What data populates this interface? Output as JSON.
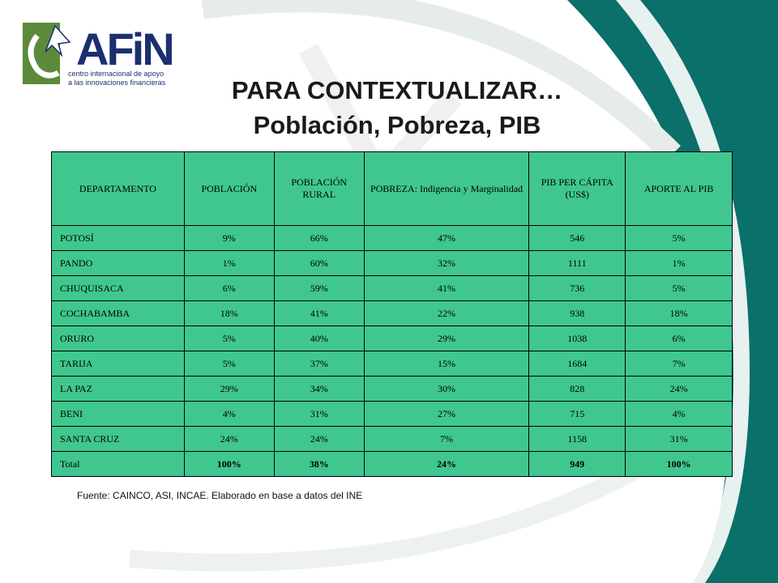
{
  "logo": {
    "brand": "AFiN",
    "tagline_line1": "centro internacional de apoyo",
    "tagline_line2": "a las innovaciones financieras"
  },
  "title": {
    "line1": "PARA CONTEXTUALIZAR…",
    "line2": "Población, Pobreza, PIB"
  },
  "table": {
    "headers": [
      "DEPARTAMENTO",
      "POBLACIÓN",
      "POBLACIÓN RURAL",
      "POBREZA: Indigencia y Marginalidad",
      "PIB PER CÁPITA (US$)",
      "APORTE AL PIB"
    ],
    "rows": [
      [
        "POTOSÍ",
        "9%",
        "66%",
        "47%",
        "546",
        "5%"
      ],
      [
        "PANDO",
        "1%",
        "60%",
        "32%",
        "1111",
        "1%"
      ],
      [
        "CHUQUISACA",
        "6%",
        "59%",
        "41%",
        "736",
        "5%"
      ],
      [
        "COCHABAMBA",
        "18%",
        "41%",
        "22%",
        "938",
        "18%"
      ],
      [
        "ORURO",
        "5%",
        "40%",
        "29%",
        "1038",
        "6%"
      ],
      [
        "TARIJA",
        "5%",
        "37%",
        "15%",
        "1684",
        "7%"
      ],
      [
        "LA PAZ",
        "29%",
        "34%",
        "30%",
        "828",
        "24%"
      ],
      [
        "BENI",
        "4%",
        "31%",
        "27%",
        "715",
        "4%"
      ],
      [
        "SANTA CRUZ",
        "24%",
        "24%",
        "7%",
        "1158",
        "31%"
      ],
      [
        "Total",
        "100%",
        "38%",
        "24%",
        "949",
        "100%"
      ]
    ]
  },
  "source": "Fuente: CAINCO,  ASI, INCAE. Elaborado en base a datos del INE",
  "colors": {
    "table_fill": "#3fc78f",
    "teal_band": "#0b6f6a",
    "logo_navy": "#1c2f6e",
    "logo_green": "#5c8a3a"
  }
}
